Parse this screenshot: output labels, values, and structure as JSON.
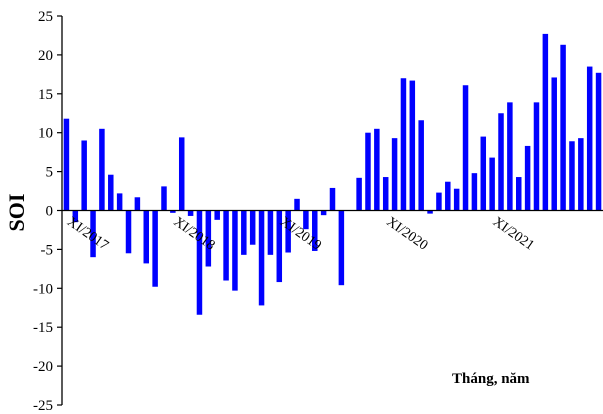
{
  "chart_data": {
    "type": "bar",
    "ylabel": "SOI",
    "xlabel": "Tháng, năm",
    "ylim": [
      -25,
      25
    ],
    "yticks": [
      25,
      20,
      15,
      10,
      5,
      0,
      -5,
      -10,
      -15,
      -20,
      -25
    ],
    "grid": false,
    "bar_color": "#0000ff",
    "x_tick_labels": [
      {
        "label": "XI/2017",
        "index": 0
      },
      {
        "label": "XI/2018",
        "index": 12
      },
      {
        "label": "XI/2019",
        "index": 24
      },
      {
        "label": "XI/2020",
        "index": 36
      },
      {
        "label": "XI/2021",
        "index": 48
      }
    ],
    "values": [
      11.8,
      -1.5,
      9.0,
      -6.0,
      10.5,
      4.6,
      2.2,
      -5.5,
      1.7,
      -6.8,
      -9.8,
      3.1,
      -0.3,
      9.4,
      -0.7,
      -13.4,
      -7.2,
      -1.2,
      -9.0,
      -10.3,
      -5.7,
      -4.4,
      -12.2,
      -5.7,
      -9.2,
      -5.4,
      1.5,
      -2.4,
      -5.2,
      -0.6,
      2.9,
      -9.6,
      0.0,
      4.2,
      10.0,
      10.5,
      4.3,
      9.3,
      17.0,
      16.7,
      11.6,
      -0.4,
      2.3,
      3.7,
      2.8,
      16.1,
      4.8,
      9.5,
      6.8,
      12.5,
      13.9,
      4.3,
      8.3,
      13.9,
      22.7,
      17.1,
      21.3,
      8.9,
      9.3,
      18.5,
      17.7
    ]
  }
}
